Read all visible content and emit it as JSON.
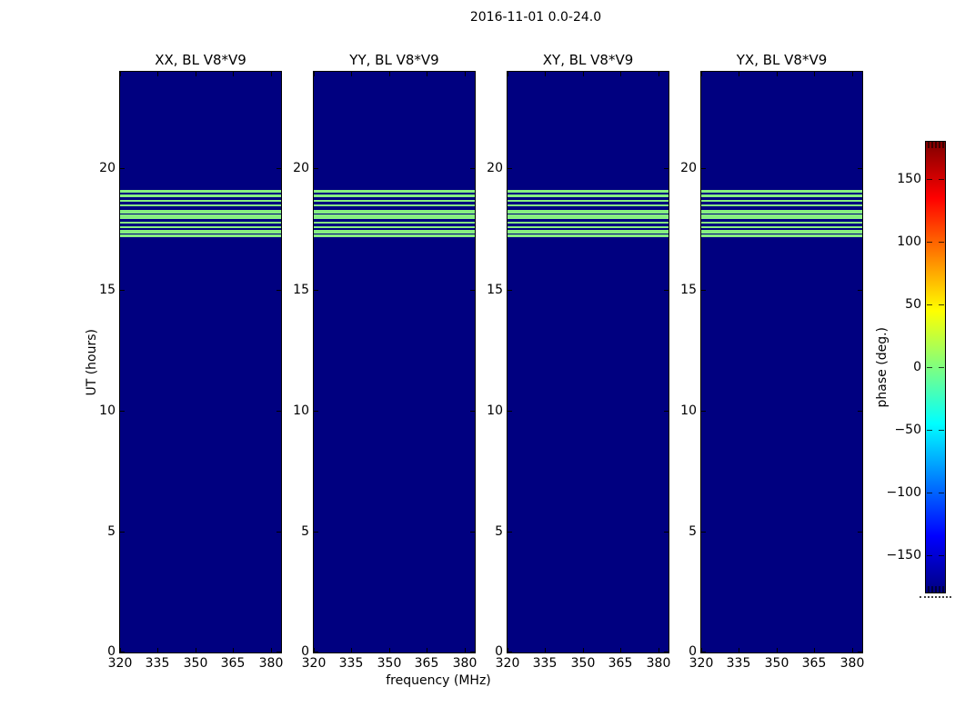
{
  "figure": {
    "title": "2016-11-01 0.0-24.0",
    "background_color": "#ffffff"
  },
  "chart_data": {
    "type": "heatmap",
    "description": "Four dynamic-spectrum (waterfall) panels of visibility phase vs UT time and frequency for baseline V8*V9, one per polarization product. Background is constant phase near -180 deg (dark navy); a horizontal band of scans near 17.2-19.1 UT has phase near 0 deg (light green stripes). Identical pattern in all four panels.",
    "panels": [
      {
        "title": "XX, BL V8*V9"
      },
      {
        "title": "YY, BL V8*V9"
      },
      {
        "title": "XY, BL V8*V9"
      },
      {
        "title": "YX, BL V8*V9"
      }
    ],
    "xlabel": "frequency (MHz)",
    "ylabel": "UT (hours)",
    "xlim": [
      320,
      384
    ],
    "ylim": [
      0,
      24
    ],
    "xticks": [
      320,
      335,
      350,
      365,
      380
    ],
    "yticks": [
      0,
      5,
      10,
      15,
      20
    ],
    "background_value_deg": -180,
    "background_color": "#000080",
    "stripe_value_deg": 0,
    "stripe_color": "#87ef80",
    "stripes_ut_hours": [
      [
        17.18,
        17.27
      ],
      [
        17.33,
        17.45
      ],
      [
        17.52,
        17.63
      ],
      [
        17.71,
        17.82
      ],
      [
        17.9,
        18.09
      ],
      [
        18.16,
        18.31
      ],
      [
        18.42,
        18.53
      ],
      [
        18.61,
        18.72
      ],
      [
        18.83,
        18.94
      ],
      [
        19.02,
        19.13
      ]
    ],
    "colorbar": {
      "label": "phase (deg.)",
      "min": -180,
      "max": 180,
      "ticks": [
        150,
        100,
        50,
        0,
        -50,
        -100,
        -150
      ],
      "tick_labels": [
        "150",
        "100",
        "50",
        "0",
        "−50",
        "−100",
        "−150"
      ],
      "colormap": "jet",
      "gradient_stops": [
        {
          "pos": 0.0,
          "color": "#000080"
        },
        {
          "pos": 0.125,
          "color": "#0000ff"
        },
        {
          "pos": 0.375,
          "color": "#00ffff"
        },
        {
          "pos": 0.625,
          "color": "#ffff00"
        },
        {
          "pos": 0.875,
          "color": "#ff0000"
        },
        {
          "pos": 1.0,
          "color": "#800000"
        }
      ]
    }
  }
}
